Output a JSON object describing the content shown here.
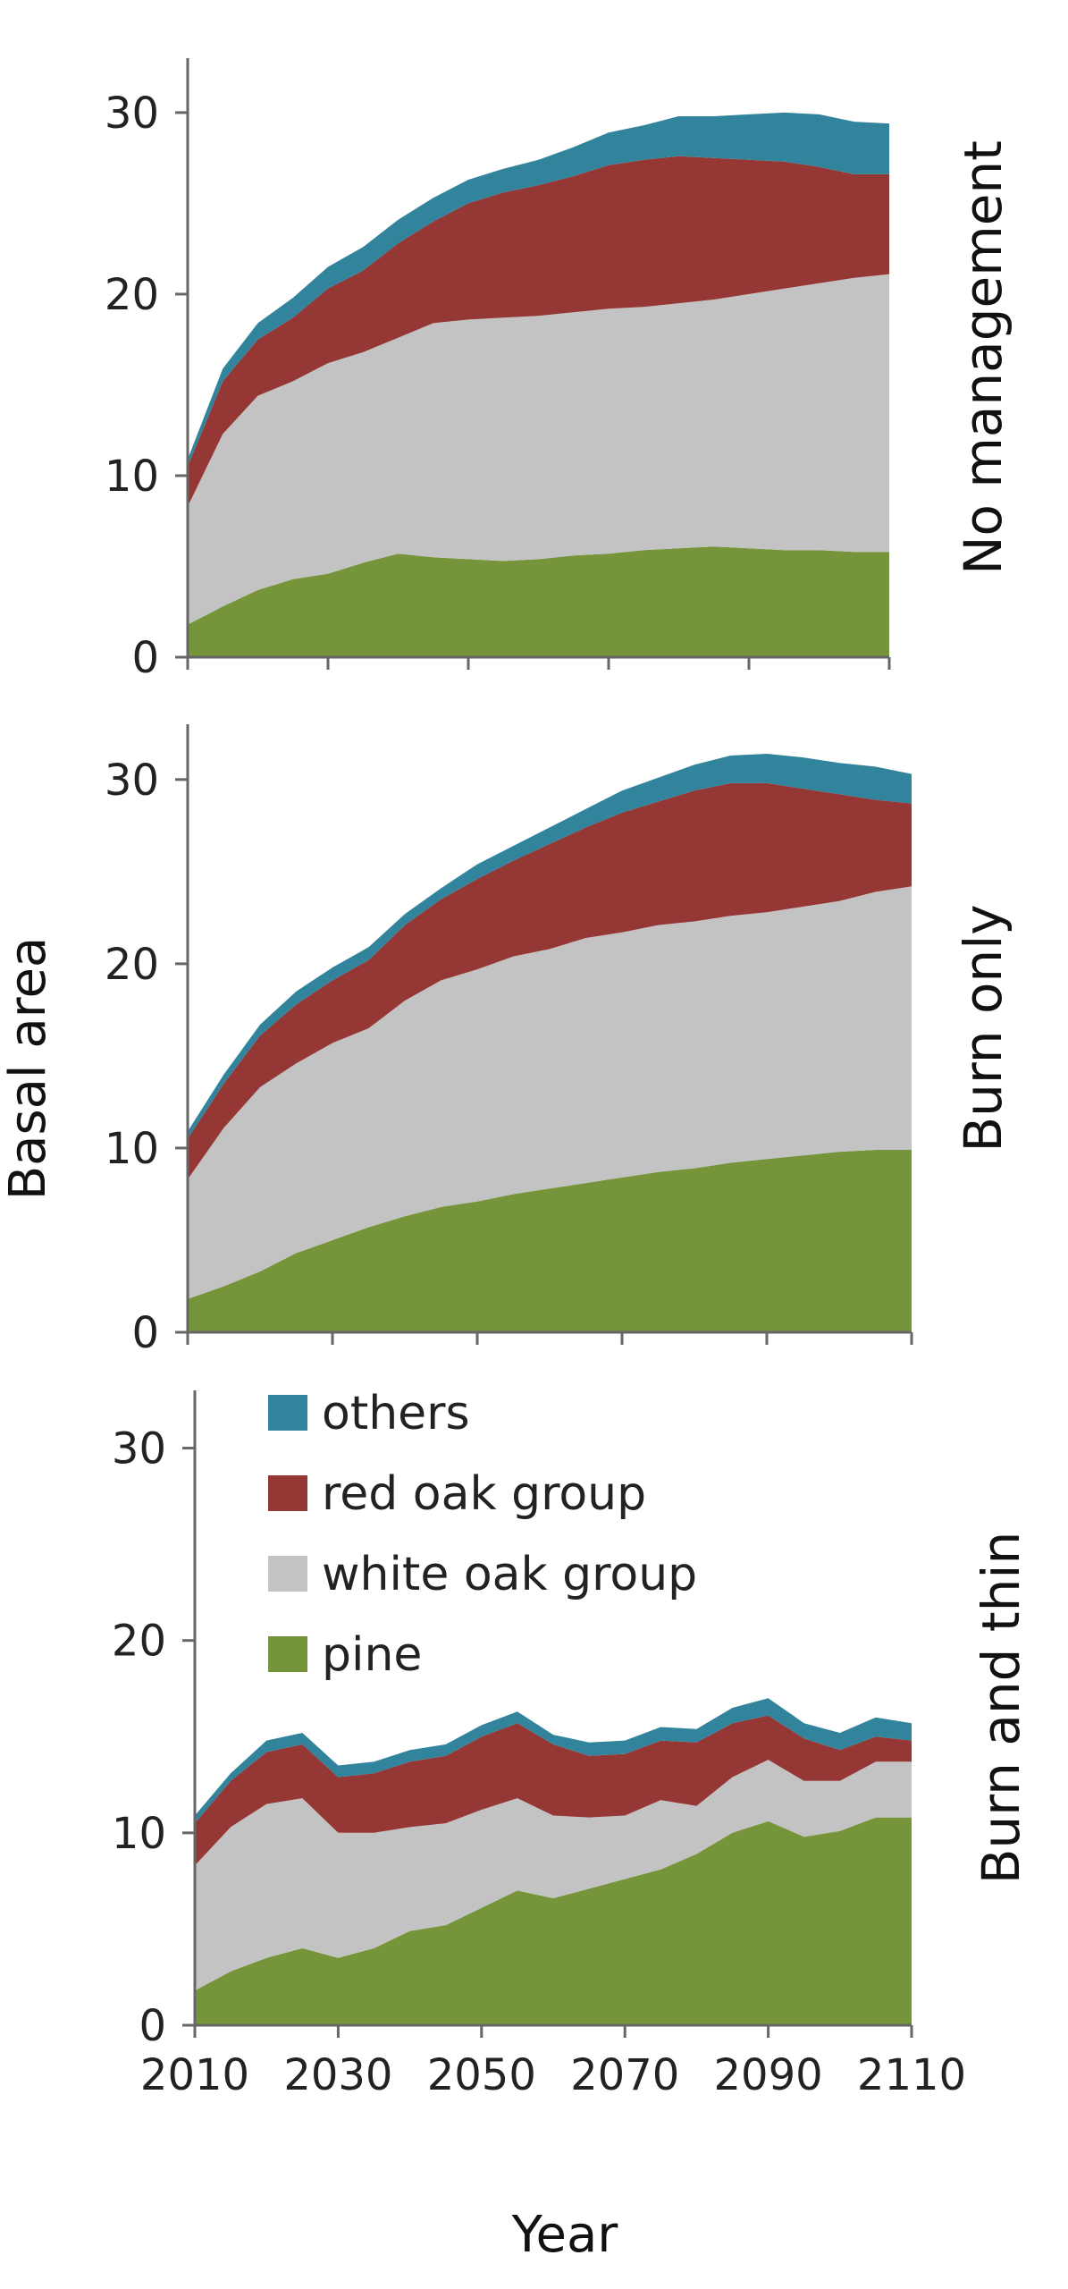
{
  "ylabel": "Basal area",
  "xlabel": "Year",
  "colors": {
    "pine": "#76943a",
    "white oak group": "#c3c3c3",
    "red oak group": "#953735",
    "others": "#31849b"
  },
  "legend": [
    "others",
    "red oak group",
    "white oak group",
    "pine"
  ],
  "chart_data": [
    {
      "type": "area",
      "stacked": true,
      "title": "No management",
      "x": [
        2010,
        2015,
        2020,
        2025,
        2030,
        2035,
        2040,
        2045,
        2050,
        2055,
        2060,
        2065,
        2070,
        2075,
        2080,
        2085,
        2090,
        2095,
        2100,
        2105,
        2110
      ],
      "xticks": [
        2010,
        2030,
        2050,
        2070,
        2090,
        2110
      ],
      "yticks": [
        0,
        10,
        20,
        30
      ],
      "ylim": [
        0,
        33
      ],
      "xlim": [
        2010,
        2110
      ],
      "series": [
        {
          "name": "pine",
          "values": [
            1.8,
            2.8,
            3.7,
            4.3,
            4.6,
            5.2,
            5.7,
            5.5,
            5.4,
            5.3,
            5.4,
            5.6,
            5.7,
            5.9,
            6.0,
            6.1,
            6.0,
            5.9,
            5.9,
            5.8,
            5.8
          ]
        },
        {
          "name": "white oak group",
          "values": [
            6.5,
            9.5,
            10.7,
            10.9,
            11.6,
            11.6,
            11.9,
            12.9,
            13.2,
            13.4,
            13.4,
            13.4,
            13.5,
            13.4,
            13.5,
            13.6,
            14.0,
            14.4,
            14.7,
            15.1,
            15.3
          ]
        },
        {
          "name": "red oak group",
          "values": [
            2.2,
            2.9,
            3.1,
            3.5,
            4.1,
            4.5,
            5.2,
            5.6,
            6.4,
            6.9,
            7.2,
            7.5,
            7.9,
            8.1,
            8.1,
            7.8,
            7.4,
            7.0,
            6.4,
            5.7,
            5.5
          ]
        },
        {
          "name": "others",
          "values": [
            0.4,
            0.7,
            0.9,
            1.1,
            1.2,
            1.3,
            1.3,
            1.3,
            1.3,
            1.3,
            1.4,
            1.6,
            1.8,
            1.9,
            2.2,
            2.3,
            2.5,
            2.7,
            2.9,
            2.9,
            2.8
          ]
        }
      ]
    },
    {
      "type": "area",
      "stacked": true,
      "title": "Burn only",
      "x": [
        2010,
        2015,
        2020,
        2025,
        2030,
        2035,
        2040,
        2045,
        2050,
        2055,
        2060,
        2065,
        2070,
        2075,
        2080,
        2085,
        2090,
        2095,
        2100,
        2105,
        2110
      ],
      "xticks": [
        2010,
        2030,
        2050,
        2070,
        2090,
        2110
      ],
      "yticks": [
        0,
        10,
        20,
        30
      ],
      "ylim": [
        0,
        33
      ],
      "xlim": [
        2010,
        2110
      ],
      "series": [
        {
          "name": "pine",
          "values": [
            1.8,
            2.5,
            3.3,
            4.3,
            5.0,
            5.7,
            6.3,
            6.8,
            7.1,
            7.5,
            7.8,
            8.1,
            8.4,
            8.7,
            8.9,
            9.2,
            9.4,
            9.6,
            9.8,
            9.9,
            9.9
          ]
        },
        {
          "name": "white oak group",
          "values": [
            6.5,
            8.6,
            10.0,
            10.3,
            10.7,
            10.8,
            11.7,
            12.3,
            12.6,
            12.9,
            13.0,
            13.3,
            13.3,
            13.4,
            13.4,
            13.4,
            13.4,
            13.5,
            13.6,
            14.0,
            14.3
          ]
        },
        {
          "name": "red oak group",
          "values": [
            2.2,
            2.4,
            2.8,
            3.2,
            3.4,
            3.7,
            4.1,
            4.4,
            4.9,
            5.2,
            5.7,
            6.0,
            6.5,
            6.7,
            7.1,
            7.2,
            7.0,
            6.4,
            5.8,
            5.0,
            4.5
          ]
        },
        {
          "name": "others",
          "values": [
            0.4,
            0.5,
            0.6,
            0.7,
            0.7,
            0.7,
            0.6,
            0.6,
            0.8,
            0.8,
            0.9,
            1.0,
            1.2,
            1.3,
            1.4,
            1.5,
            1.6,
            1.7,
            1.7,
            1.8,
            1.6
          ]
        }
      ]
    },
    {
      "type": "area",
      "stacked": true,
      "title": "Burn and thin",
      "x": [
        2010,
        2015,
        2020,
        2025,
        2030,
        2035,
        2040,
        2045,
        2050,
        2055,
        2060,
        2065,
        2070,
        2075,
        2080,
        2085,
        2090,
        2095,
        2100,
        2105,
        2110
      ],
      "xticks": [
        2010,
        2030,
        2050,
        2070,
        2090,
        2110
      ],
      "yticks": [
        0,
        10,
        20,
        30
      ],
      "ylim": [
        0,
        33
      ],
      "xlim": [
        2010,
        2110
      ],
      "series": [
        {
          "name": "pine",
          "values": [
            1.8,
            2.8,
            3.5,
            4.0,
            3.5,
            4.0,
            4.9,
            5.2,
            6.1,
            7.0,
            6.6,
            7.1,
            7.6,
            8.1,
            8.9,
            10.0,
            10.6,
            9.8,
            10.1,
            10.8,
            10.8
          ]
        },
        {
          "name": "white oak group",
          "values": [
            6.5,
            7.5,
            8.0,
            7.8,
            6.5,
            6.0,
            5.4,
            5.3,
            5.1,
            4.8,
            4.3,
            3.7,
            3.3,
            3.6,
            2.5,
            2.9,
            3.2,
            2.9,
            2.6,
            2.9,
            2.9
          ]
        },
        {
          "name": "red oak group",
          "values": [
            2.2,
            2.4,
            2.7,
            2.8,
            2.9,
            3.1,
            3.4,
            3.5,
            3.8,
            3.9,
            3.7,
            3.2,
            3.2,
            3.1,
            3.3,
            2.8,
            2.3,
            2.2,
            1.6,
            1.3,
            1.1
          ]
        },
        {
          "name": "others",
          "values": [
            0.4,
            0.4,
            0.6,
            0.6,
            0.6,
            0.6,
            0.6,
            0.6,
            0.6,
            0.6,
            0.5,
            0.7,
            0.7,
            0.7,
            0.7,
            0.8,
            0.9,
            0.8,
            0.9,
            1.0,
            0.9
          ]
        }
      ]
    }
  ]
}
